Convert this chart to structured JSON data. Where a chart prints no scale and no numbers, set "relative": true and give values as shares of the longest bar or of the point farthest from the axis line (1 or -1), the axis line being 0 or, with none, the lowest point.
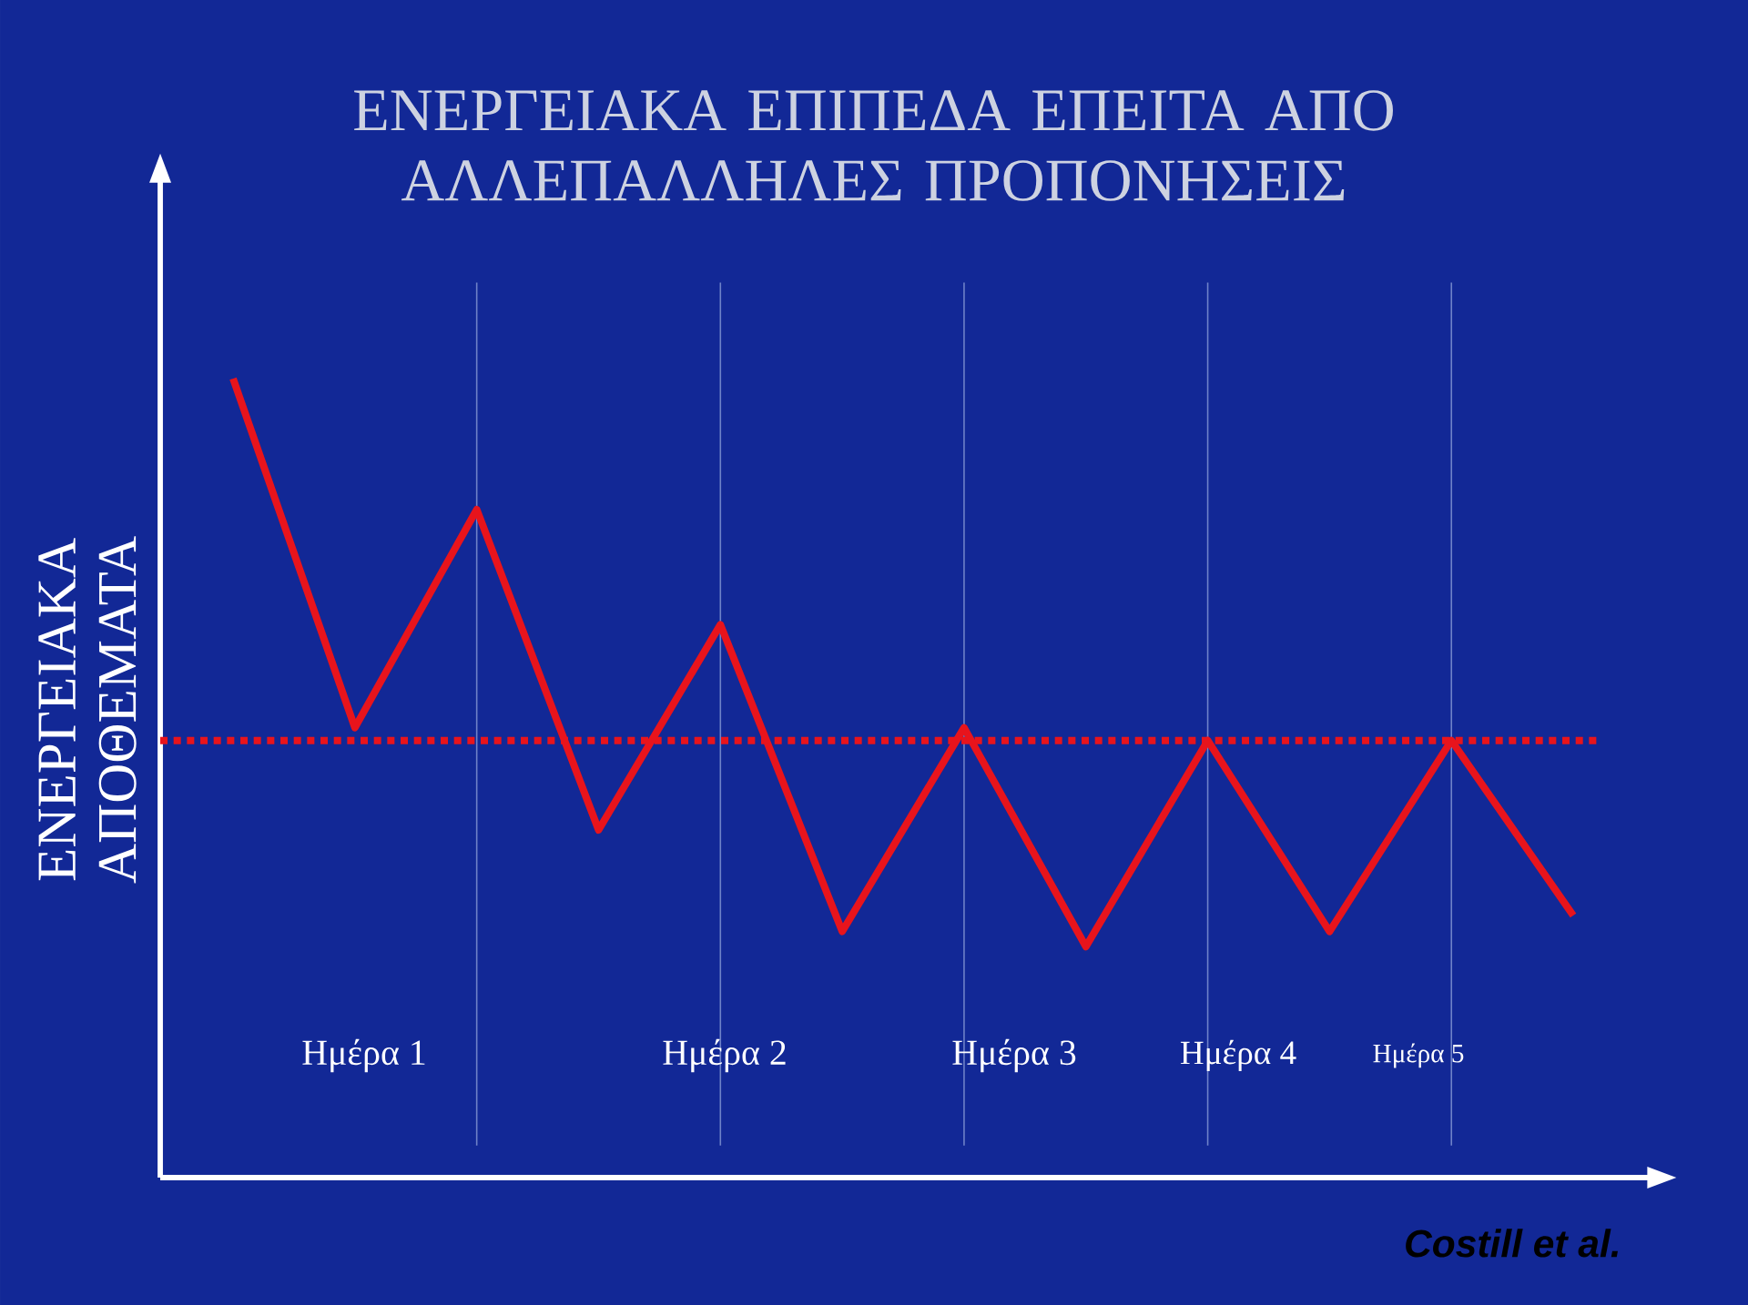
{
  "chart_data": {
    "type": "line",
    "title": "ΕΝΕΡΓΕΙΑΚΑ ΕΠΙΠΕΔΑ ΕΠΕΙΤΑ ΑΠΟ ΑΛΛΕΠΑΛΛΗΛΕΣ ΠΡΟΠΟΝΗΣΕΙΣ",
    "ylabel": "ΕΝΕΡΓΕΙΑΚΑ ΑΠΟΘΕΜΑΤΑ",
    "relative": true,
    "categories": [
      null,
      null,
      null,
      null,
      null,
      null,
      null,
      null,
      null,
      null,
      null,
      null
    ],
    "values": [
      1,
      0.563,
      0.836,
      0.435,
      0.692,
      0.308,
      0.563,
      0.289,
      0.547,
      0.308,
      0.547,
      0.328
    ],
    "color": "#e8141c",
    "marker": "none",
    "line_style": "solid",
    "grid": "x",
    "ref_lines": [
      {
        "axis": "y",
        "value": 0.547,
        "color": "#e8141c",
        "line_style": "dotted"
      }
    ],
    "annotations": [
      "Ημέρα 1",
      "Ημέρα 2",
      "Ημέρα 3",
      "Ημέρα 4",
      "Ημέρα 5",
      "Costill et al."
    ]
  }
}
